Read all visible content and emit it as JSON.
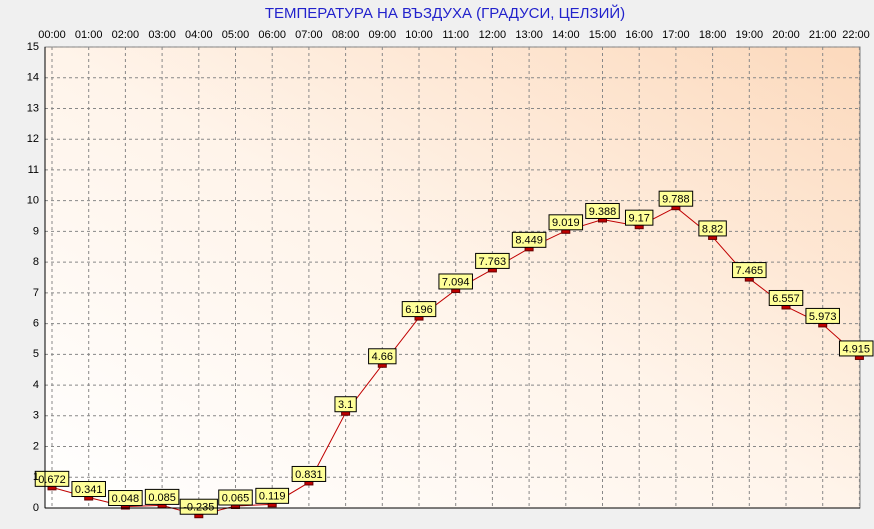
{
  "chart_data": {
    "type": "line",
    "title": "ТЕМПЕРАТУРА НА ВЪЗДУХА  (ГРАДУСИ, ЦЕЛЗИЙ)",
    "categories": [
      "00:00",
      "01:00",
      "02:00",
      "03:00",
      "04:00",
      "05:00",
      "06:00",
      "07:00",
      "08:00",
      "09:00",
      "10:00",
      "11:00",
      "12:00",
      "13:00",
      "14:00",
      "15:00",
      "16:00",
      "17:00",
      "18:00",
      "19:00",
      "20:00",
      "21:00",
      "22:00"
    ],
    "values": [
      0.672,
      0.341,
      0.048,
      0.085,
      -0.235,
      0.065,
      0.119,
      0.831,
      3.1,
      4.66,
      6.196,
      7.094,
      7.763,
      8.449,
      9.019,
      9.388,
      9.17,
      9.788,
      8.82,
      7.465,
      6.557,
      5.973,
      4.915
    ],
    "color": "#c00000",
    "ylim": [
      0,
      15
    ],
    "yticks": [
      0,
      1,
      2,
      3,
      4,
      5,
      6,
      7,
      8,
      9,
      10,
      11,
      12,
      13,
      14,
      15
    ],
    "grid": true
  }
}
